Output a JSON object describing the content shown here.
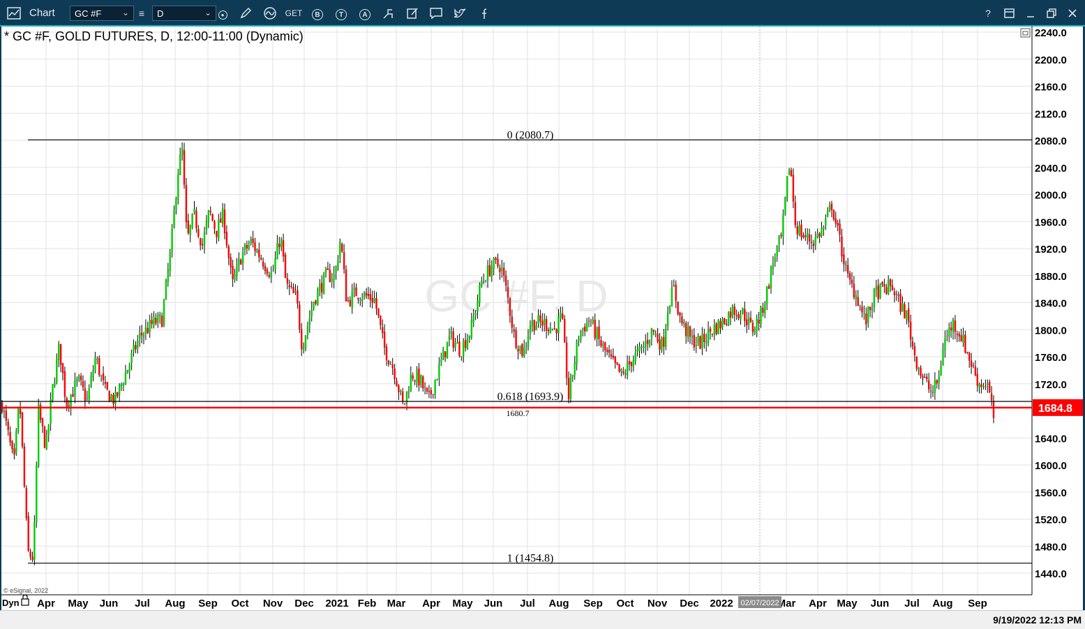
{
  "toolbar": {
    "title": "Chart",
    "symbol": "GC #F",
    "interval": "D",
    "icons": [
      "pencil-icon",
      "wave-icon",
      "get-icon",
      "b-circle-icon",
      "t-circle-icon",
      "a-circle-icon",
      "share-icon",
      "edit-icon",
      "comment-icon",
      "twitter-icon",
      "facebook-icon"
    ],
    "get_label": "GET",
    "b_label": "B",
    "t_label": "T",
    "a_label": "A",
    "right_icons": [
      "help-icon",
      "window-icon",
      "minimize-icon",
      "restore-icon",
      "close-icon"
    ]
  },
  "colors": {
    "toolbar_bg": "#0f3a55",
    "up": "#00cc00",
    "down": "#ff0000",
    "price_line": "#ff0000",
    "grid": "#e2e2e2"
  },
  "chart_data": {
    "type": "candlestick",
    "title": "* GC #F, GOLD FUTURES, D, 12:00-11:00 (Dynamic)",
    "watermark": "GC #F, D",
    "ylim": [
      1400,
      2250
    ],
    "y_ticks": [
      "2240.0",
      "2200.0",
      "2160.0",
      "2120.0",
      "2080.0",
      "2040.0",
      "2000.0",
      "1960.0",
      "1920.0",
      "1880.0",
      "1840.0",
      "1800.0",
      "1760.0",
      "1720.0",
      "1640.0",
      "1600.0",
      "1560.0",
      "1520.0",
      "1480.0",
      "1440.0"
    ],
    "x_ticks": [
      "Apr",
      "May",
      "Jun",
      "Jul",
      "Aug",
      "Sep",
      "Oct",
      "Nov",
      "Dec",
      "2021",
      "Feb",
      "Mar",
      "Apr",
      "May",
      "Jun",
      "Jul",
      "Aug",
      "Sep",
      "Oct",
      "Nov",
      "Dec",
      "2022",
      "Mar",
      "Apr",
      "May",
      "Jun",
      "Jul",
      "Aug",
      "Sep"
    ],
    "x_tick_values": [
      66,
      112,
      156,
      204,
      251,
      298,
      344,
      391,
      436,
      483,
      526,
      568,
      618,
      663,
      707,
      756,
      801,
      850,
      896,
      942,
      988,
      1034,
      1127,
      1172,
      1214,
      1261,
      1307,
      1351,
      1401
    ],
    "cursor_label": "02/07/2022",
    "dyn_label": "Dyn",
    "current_price": 1684.8,
    "current_price_label": "1684.8",
    "fib_levels": [
      {
        "label": "0 (2080.7)",
        "value": 2080.7
      },
      {
        "label": "0.618 (1693.9)",
        "value": 1693.9
      },
      {
        "label": "1 (1454.8)",
        "value": 1454.8
      }
    ],
    "support_label": "1680.7",
    "anchors": [
      [
        3,
        1690
      ],
      [
        20,
        1600
      ],
      [
        28,
        1698
      ],
      [
        40,
        1470
      ],
      [
        48,
        1462
      ],
      [
        55,
        1680
      ],
      [
        66,
        1625
      ],
      [
        75,
        1710
      ],
      [
        85,
        1775
      ],
      [
        95,
        1690
      ],
      [
        112,
        1725
      ],
      [
        125,
        1695
      ],
      [
        137,
        1760
      ],
      [
        150,
        1710
      ],
      [
        165,
        1695
      ],
      [
        180,
        1735
      ],
      [
        200,
        1790
      ],
      [
        220,
        1810
      ],
      [
        232,
        1815
      ],
      [
        245,
        1920
      ],
      [
        255,
        2035
      ],
      [
        261,
        2065
      ],
      [
        268,
        1930
      ],
      [
        278,
        1970
      ],
      [
        290,
        1925
      ],
      [
        300,
        1975
      ],
      [
        310,
        1945
      ],
      [
        320,
        1970
      ],
      [
        333,
        1865
      ],
      [
        346,
        1910
      ],
      [
        360,
        1930
      ],
      [
        375,
        1905
      ],
      [
        390,
        1880
      ],
      [
        402,
        1940
      ],
      [
        410,
        1865
      ],
      [
        425,
        1845
      ],
      [
        433,
        1775
      ],
      [
        450,
        1845
      ],
      [
        468,
        1880
      ],
      [
        480,
        1880
      ],
      [
        488,
        1935
      ],
      [
        497,
        1840
      ],
      [
        510,
        1855
      ],
      [
        524,
        1850
      ],
      [
        537,
        1845
      ],
      [
        550,
        1775
      ],
      [
        565,
        1740
      ],
      [
        578,
        1685
      ],
      [
        590,
        1735
      ],
      [
        602,
        1725
      ],
      [
        614,
        1695
      ],
      [
        630,
        1745
      ],
      [
        645,
        1790
      ],
      [
        660,
        1770
      ],
      [
        675,
        1800
      ],
      [
        690,
        1870
      ],
      [
        705,
        1895
      ],
      [
        718,
        1895
      ],
      [
        728,
        1845
      ],
      [
        737,
        1790
      ],
      [
        750,
        1765
      ],
      [
        760,
        1810
      ],
      [
        780,
        1810
      ],
      [
        795,
        1800
      ],
      [
        805,
        1820
      ],
      [
        815,
        1700
      ],
      [
        830,
        1795
      ],
      [
        845,
        1815
      ],
      [
        860,
        1780
      ],
      [
        878,
        1750
      ],
      [
        892,
        1730
      ],
      [
        905,
        1755
      ],
      [
        920,
        1770
      ],
      [
        935,
        1800
      ],
      [
        950,
        1775
      ],
      [
        958,
        1840
      ],
      [
        966,
        1860
      ],
      [
        975,
        1815
      ],
      [
        990,
        1785
      ],
      [
        1005,
        1780
      ],
      [
        1020,
        1800
      ],
      [
        1035,
        1810
      ],
      [
        1050,
        1830
      ],
      [
        1065,
        1825
      ],
      [
        1078,
        1800
      ],
      [
        1090,
        1820
      ],
      [
        1100,
        1860
      ],
      [
        1110,
        1910
      ],
      [
        1120,
        1935
      ],
      [
        1128,
        2015
      ],
      [
        1132,
        2050
      ],
      [
        1140,
        1955
      ],
      [
        1150,
        1940
      ],
      [
        1165,
        1930
      ],
      [
        1180,
        1950
      ],
      [
        1192,
        1985
      ],
      [
        1205,
        1925
      ],
      [
        1215,
        1875
      ],
      [
        1228,
        1850
      ],
      [
        1240,
        1810
      ],
      [
        1255,
        1855
      ],
      [
        1268,
        1860
      ],
      [
        1278,
        1865
      ],
      [
        1288,
        1840
      ],
      [
        1300,
        1820
      ],
      [
        1310,
        1765
      ],
      [
        1322,
        1730
      ],
      [
        1336,
        1705
      ],
      [
        1346,
        1730
      ],
      [
        1352,
        1780
      ],
      [
        1366,
        1810
      ],
      [
        1378,
        1790
      ],
      [
        1390,
        1755
      ],
      [
        1403,
        1720
      ],
      [
        1415,
        1720
      ],
      [
        1425,
        1665
      ]
    ],
    "xlabel": "",
    "ylabel": ""
  },
  "status": {
    "copyright": "© eSignal, 2022",
    "datetime": "9/19/2022 12:13 PM"
  }
}
